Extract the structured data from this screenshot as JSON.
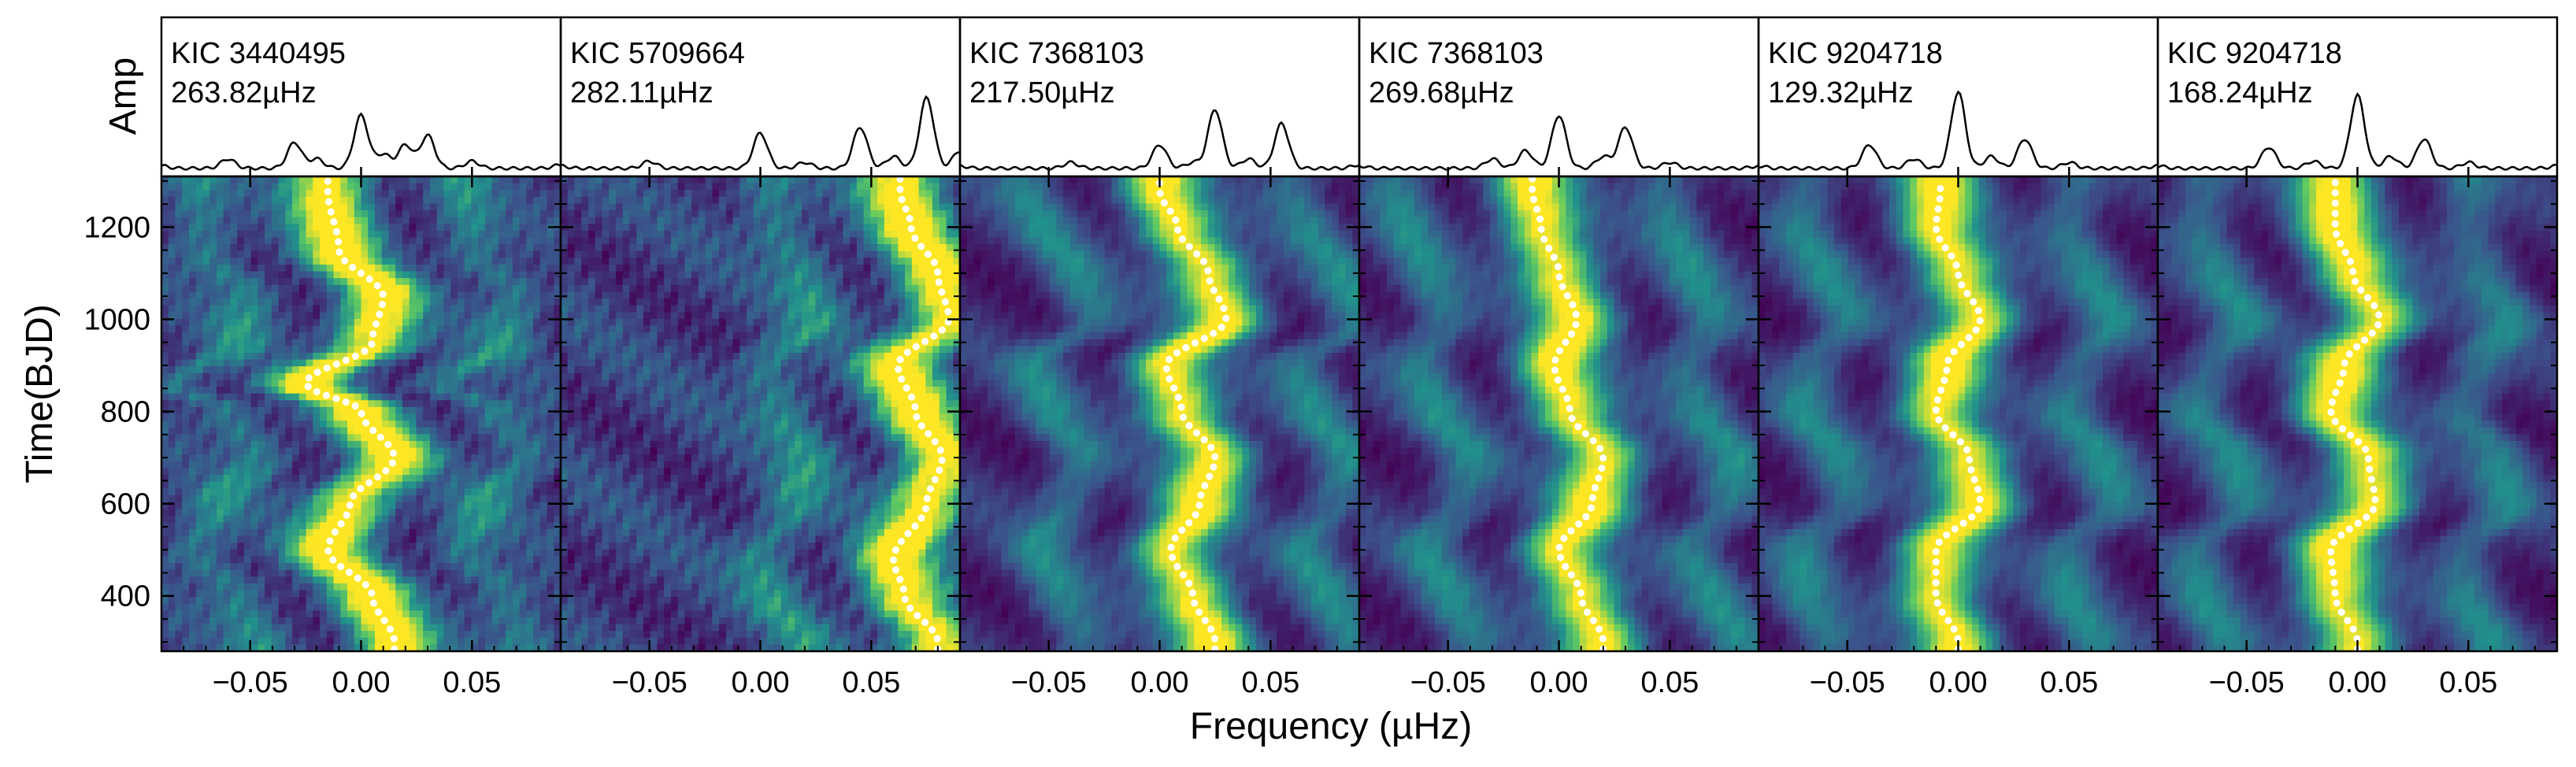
{
  "figure": {
    "ylabel_top": "Amp",
    "ylabel_bottom": "Time(BJD)",
    "xlabel": "Frequency (µHz)"
  },
  "chart_data": {
    "type": "heatmap",
    "description_free": true,
    "xlim": [
      -0.09,
      0.09
    ],
    "ylim": [
      280,
      1310
    ],
    "x_ticks": [
      -0.05,
      0.0,
      0.05
    ],
    "x_tick_labels": [
      "−0.05",
      "0.00",
      "0.05"
    ],
    "y_ticks": [
      400,
      600,
      800,
      1000,
      1200
    ],
    "y_tick_labels": [
      "400",
      "600",
      "800",
      "1000",
      "1200"
    ],
    "colormap": [
      "#440154",
      "#3b528b",
      "#21918c",
      "#5ec962",
      "#fde725"
    ],
    "track_color": "#ffffff",
    "panels": [
      {
        "star": "KIC 3440495",
        "freq": "263.82µHz",
        "track_time": [
          300,
          400,
          500,
          600,
          700,
          800,
          860,
          950,
          1050,
          1150,
          1280
        ],
        "track_offset": [
          0.015,
          0.005,
          -0.015,
          -0.005,
          0.015,
          0.0,
          -0.025,
          0.005,
          0.01,
          -0.01,
          -0.015
        ],
        "spectrum": [
          [
            -0.09,
            0.02
          ],
          [
            -0.06,
            0.08
          ],
          [
            -0.03,
            0.22
          ],
          [
            -0.02,
            0.08
          ],
          [
            0.0,
            0.45
          ],
          [
            0.01,
            0.12
          ],
          [
            0.02,
            0.2
          ],
          [
            0.03,
            0.28
          ],
          [
            0.05,
            0.06
          ],
          [
            0.09,
            0.03
          ]
        ],
        "noise": 0.55
      },
      {
        "star": "KIC 5709664",
        "freq": "282.11µHz",
        "track_time": [
          300,
          400,
          480,
          600,
          700,
          800,
          900,
          1000,
          1100,
          1200,
          1280
        ],
        "track_offset": [
          0.08,
          0.065,
          0.06,
          0.075,
          0.082,
          0.07,
          0.062,
          0.085,
          0.08,
          0.068,
          0.063
        ],
        "spectrum": [
          [
            -0.09,
            0.02
          ],
          [
            -0.05,
            0.06
          ],
          [
            0.0,
            0.3
          ],
          [
            0.02,
            0.05
          ],
          [
            0.045,
            0.35
          ],
          [
            0.06,
            0.1
          ],
          [
            0.075,
            0.6
          ],
          [
            0.09,
            0.15
          ]
        ],
        "noise": 0.6
      },
      {
        "star": "KIC 7368103",
        "freq": "217.50µHz",
        "track_time": [
          300,
          400,
          500,
          600,
          700,
          800,
          900,
          1000,
          1100,
          1200,
          1280
        ],
        "track_offset": [
          0.025,
          0.015,
          0.005,
          0.018,
          0.025,
          0.01,
          0.003,
          0.03,
          0.022,
          0.008,
          0.0
        ],
        "spectrum": [
          [
            -0.09,
            0.02
          ],
          [
            -0.04,
            0.05
          ],
          [
            0.0,
            0.2
          ],
          [
            0.015,
            0.05
          ],
          [
            0.025,
            0.5
          ],
          [
            0.04,
            0.08
          ],
          [
            0.055,
            0.38
          ],
          [
            0.09,
            0.03
          ]
        ],
        "noise": 0.25
      },
      {
        "star": "KIC 7368103",
        "freq": "269.68µHz",
        "track_time": [
          300,
          400,
          500,
          600,
          700,
          800,
          900,
          1000,
          1100,
          1200,
          1280
        ],
        "track_offset": [
          0.02,
          0.01,
          0.0,
          0.015,
          0.02,
          0.005,
          -0.002,
          0.008,
          0.0,
          -0.008,
          -0.012
        ],
        "spectrum": [
          [
            -0.09,
            0.02
          ],
          [
            -0.03,
            0.08
          ],
          [
            -0.015,
            0.15
          ],
          [
            0.0,
            0.45
          ],
          [
            0.02,
            0.1
          ],
          [
            0.03,
            0.35
          ],
          [
            0.05,
            0.05
          ],
          [
            0.09,
            0.02
          ]
        ],
        "noise": 0.25
      },
      {
        "star": "KIC 9204718",
        "freq": "129.32µHz",
        "track_time": [
          300,
          400,
          500,
          600,
          700,
          800,
          900,
          1000,
          1100,
          1200,
          1280
        ],
        "track_offset": [
          0.0,
          -0.01,
          -0.01,
          0.01,
          0.005,
          -0.01,
          -0.005,
          0.01,
          0.0,
          -0.01,
          -0.008
        ],
        "spectrum": [
          [
            -0.09,
            0.02
          ],
          [
            -0.04,
            0.2
          ],
          [
            -0.02,
            0.08
          ],
          [
            0.0,
            0.65
          ],
          [
            0.015,
            0.1
          ],
          [
            0.03,
            0.25
          ],
          [
            0.05,
            0.05
          ],
          [
            0.09,
            0.02
          ]
        ],
        "noise": 0.2
      },
      {
        "star": "KIC 9204718",
        "freq": "168.24µHz",
        "track_time": [
          300,
          400,
          500,
          600,
          700,
          800,
          900,
          1000,
          1100,
          1200,
          1280
        ],
        "track_offset": [
          0.0,
          -0.01,
          -0.012,
          0.008,
          0.005,
          -0.012,
          -0.006,
          0.01,
          -0.002,
          -0.01,
          -0.01
        ],
        "spectrum": [
          [
            -0.09,
            0.02
          ],
          [
            -0.04,
            0.18
          ],
          [
            -0.02,
            0.06
          ],
          [
            0.0,
            0.62
          ],
          [
            0.015,
            0.1
          ],
          [
            0.03,
            0.25
          ],
          [
            0.05,
            0.05
          ],
          [
            0.09,
            0.02
          ]
        ],
        "noise": 0.2
      }
    ]
  }
}
